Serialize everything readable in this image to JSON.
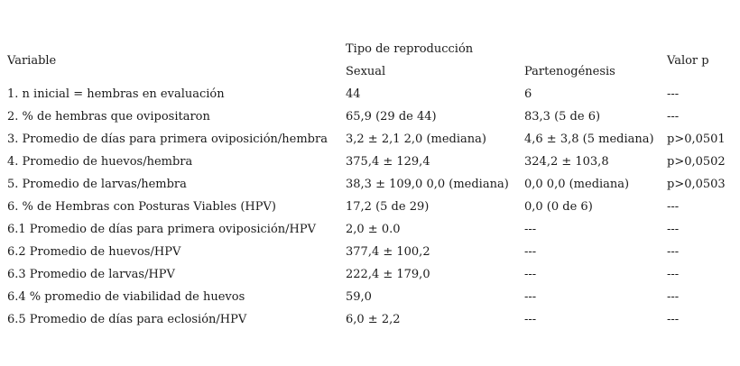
{
  "table": {
    "header": {
      "variable": "Variable",
      "group": "Tipo de reproducción",
      "sexual": "Sexual",
      "parthenogenesis": "Partenogénesis",
      "pvalue": "Valor p"
    },
    "rows": [
      [
        "1. n inicial = hembras en evaluación",
        "44",
        "6",
        "---"
      ],
      [
        "2. % de hembras que ovipositaron",
        "65,9 (29 de 44)",
        "83,3 (5 de 6)",
        "---"
      ],
      [
        "3. Promedio de días para primera oviposición/hembra",
        "3,2 ± 2,1 2,0 (mediana)",
        "4,6 ± 3,8 (5 mediana)",
        "p>0,0501"
      ],
      [
        "4. Promedio de huevos/hembra",
        "375,4 ± 129,4",
        "324,2 ± 103,8",
        "p>0,0502"
      ],
      [
        "5. Promedio de larvas/hembra",
        "38,3 ± 109,0 0,0 (mediana)",
        "0,0 0,0 (mediana)",
        "p>0,0503"
      ],
      [
        "6. % de Hembras con Posturas Viables (HPV)",
        "17,2 (5 de 29)",
        "0,0 (0 de 6)",
        "---"
      ],
      [
        "6.1 Promedio de días para primera oviposición/HPV",
        "2,0 ± 0.0",
        "---",
        "---"
      ],
      [
        "6.2 Promedio de huevos/HPV",
        "377,4 ± 100,2",
        "---",
        "---"
      ],
      [
        "6.3 Promedio de larvas/HPV",
        "222,4 ± 179,0",
        "---",
        "---"
      ],
      [
        "6.4 % promedio de viabilidad de huevos",
        "59,0",
        "---",
        "---"
      ],
      [
        "6.5 Promedio de días para eclosión/HPV",
        "6,0 ± 2,2",
        "---",
        "---"
      ]
    ]
  }
}
